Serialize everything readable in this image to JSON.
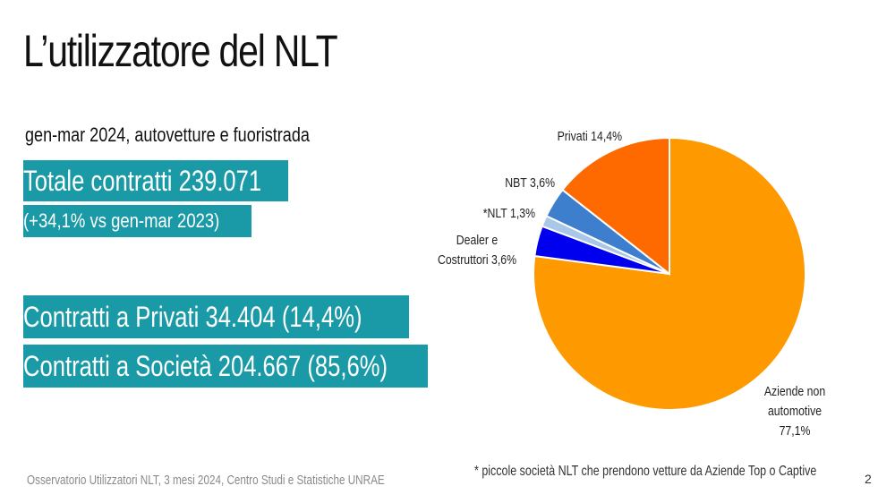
{
  "title": "L’utilizzatore del NLT",
  "subtitle": "gen-mar 2024, autovetture e fuoristrada",
  "highlights": {
    "total": "Totale contratti 239.071",
    "delta": "(+34,1% vs  gen-mar 2023)",
    "privati": "Contratti a Privati  34.404 (14,4%)",
    "societa": "Contratti a Società 204.667 (85,6%)"
  },
  "footer": {
    "source": "Osservatorio Utilizzatori NLT, 3 mesi 2024, Centro Studi e Statistiche UNRAE",
    "footnote": "* piccole società NLT che prendono vetture da Aziende Top o Captive",
    "page": "2"
  },
  "chart_data": {
    "type": "pie",
    "slices": [
      {
        "name": "Aziende non automotive",
        "value": 77.1,
        "label_lines": [
          "Aziende non",
          "automotive",
          "77,1%"
        ],
        "color": "#ff9900"
      },
      {
        "name": "Dealer e Costruttori",
        "value": 3.6,
        "label_lines": [
          "Dealer e",
          "Costruttori 3,6%"
        ],
        "color": "#0000ee"
      },
      {
        "name": "*NLT",
        "value": 1.3,
        "label_lines": [
          "*NLT 1,3%"
        ],
        "color": "#a9c8e8"
      },
      {
        "name": "NBT",
        "value": 3.6,
        "label_lines": [
          "NBT 3,6%"
        ],
        "color": "#3d7fcc"
      },
      {
        "name": "Privati",
        "value": 14.4,
        "label_lines": [
          "Privati 14,4%"
        ],
        "color": "#ff6a00"
      }
    ]
  }
}
